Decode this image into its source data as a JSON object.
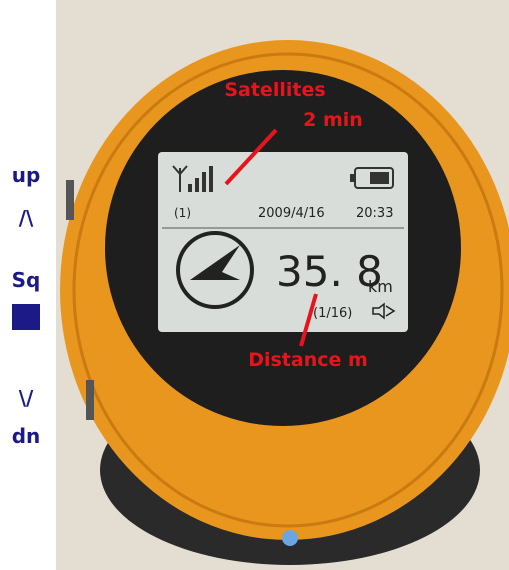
{
  "side_labels": {
    "up": "up",
    "up_arrow": "/\\",
    "select": "Sq",
    "down_arrow": "\\/",
    "down": "dn"
  },
  "screen": {
    "satellite_count": "(1)",
    "date": "2009/4/16",
    "time": "20:33",
    "distance": "35. 8",
    "unit": "km",
    "waypoint": "(1/16)"
  },
  "annotations": {
    "satellites": "Satellites",
    "satellites_time": "2 min",
    "distance": "Distance m"
  }
}
